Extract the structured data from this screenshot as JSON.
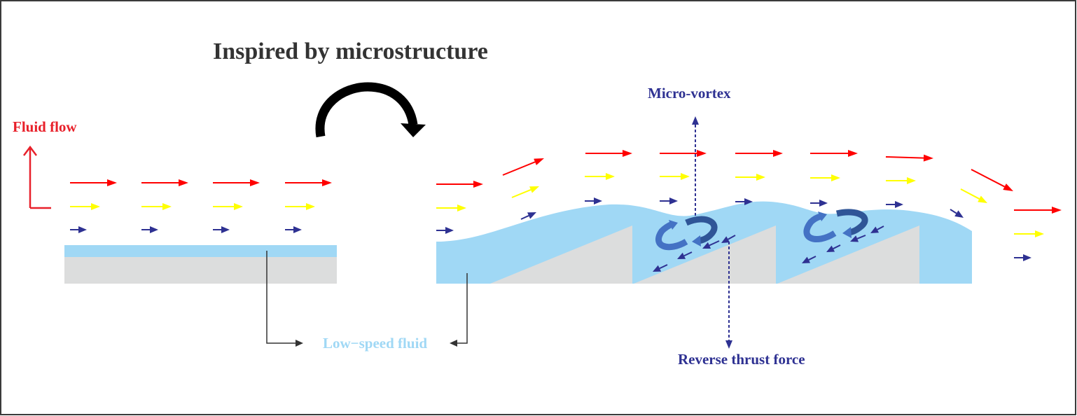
{
  "title": "Inspired by microstructure",
  "labels": {
    "fluid_flow": "Fluid flow",
    "micro_vortex": "Micro-vortex",
    "low_speed_fluid": "Low−speed fluid",
    "reverse_thrust": "Reverse thrust force"
  },
  "colors": {
    "title": "#333333",
    "fluid_flow": "#E8202A",
    "fast_arrow": "#FF0000",
    "mid_arrow": "#FFFF00",
    "slow_arrow": "#2E3192",
    "low_speed_fluid": "#A0D8F5",
    "substrate": "#DCDDDD",
    "vortex_light": "#4472C4",
    "vortex_dark": "#2F5597",
    "annotation_blue": "#2E3192"
  },
  "icons": {
    "transform_arrow": "curved-arrow-icon",
    "vortex": "rotating-arrow-icon"
  }
}
